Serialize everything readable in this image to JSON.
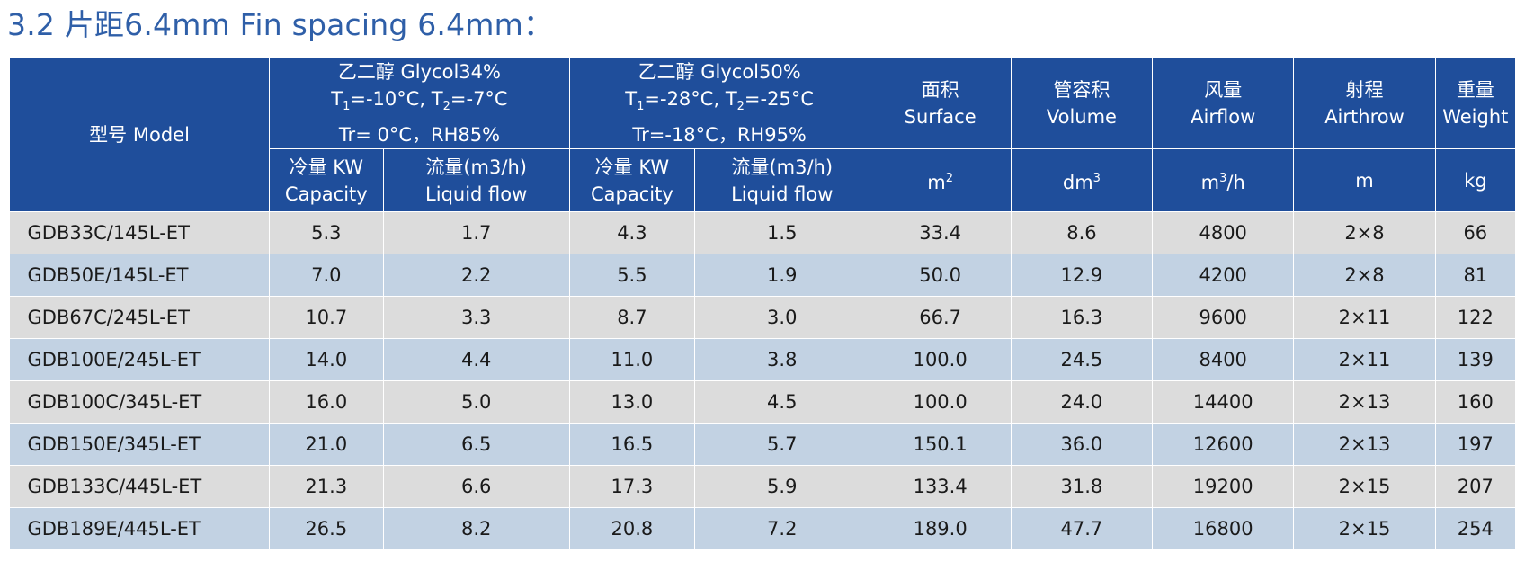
{
  "title": "3.2 片距6.4mm  Fin spacing 6.4mm：",
  "header": {
    "model": "型号 Model",
    "glycol34": {
      "line1": "乙二醇 Glycol34%",
      "t1_prefix": "T",
      "t1_sub": "1",
      "t1_val": "=-10°C, ",
      "t2_prefix": "T",
      "t2_sub": "2",
      "t2_val": "=-7°C",
      "line3": "Tr= 0°C，RH85%"
    },
    "glycol50": {
      "line1": "乙二醇 Glycol50%",
      "t1_prefix": "T",
      "t1_sub": "1",
      "t1_val": "=-28°C, ",
      "t2_prefix": "T",
      "t2_sub": "2",
      "t2_val": "=-25°C",
      "line3": "Tr=-18°C，RH95%"
    },
    "surface": {
      "cn": "面积",
      "en": "Surface"
    },
    "volume": {
      "cn": "管容积",
      "en": "Volume"
    },
    "airflow": {
      "cn": "风量",
      "en": "Airflow"
    },
    "airthrow": {
      "cn": "射程",
      "en": "Airthrow"
    },
    "weight": {
      "cn": "重量",
      "en": "Weight"
    },
    "capacity": {
      "cn": "冷量 KW",
      "en": "Capacity"
    },
    "liquid": {
      "cn": "流量(m3/h)",
      "en": "Liquid flow"
    },
    "units": {
      "surface_base": "m",
      "surface_sup": "2",
      "volume_base": "dm",
      "volume_sup": "3",
      "airflow_base": "m",
      "airflow_sup": "3",
      "airflow_rest": "/h",
      "airthrow": "m",
      "weight": "kg"
    }
  },
  "rows": [
    [
      "GDB33C/145L-ET",
      "5.3",
      "1.7",
      "4.3",
      "1.5",
      "33.4",
      "8.6",
      "4800",
      "2×8",
      "66"
    ],
    [
      "GDB50E/145L-ET",
      "7.0",
      "2.2",
      "5.5",
      "1.9",
      "50.0",
      "12.9",
      "4200",
      "2×8",
      "81"
    ],
    [
      "GDB67C/245L-ET",
      "10.7",
      "3.3",
      "8.7",
      "3.0",
      "66.7",
      "16.3",
      "9600",
      "2×11",
      "122"
    ],
    [
      "GDB100E/245L-ET",
      "14.0",
      "4.4",
      "11.0",
      "3.8",
      "100.0",
      "24.5",
      "8400",
      "2×11",
      "139"
    ],
    [
      "GDB100C/345L-ET",
      "16.0",
      "5.0",
      "13.0",
      "4.5",
      "100.0",
      "24.0",
      "14400",
      "2×13",
      "160"
    ],
    [
      "GDB150E/345L-ET",
      "21.0",
      "6.5",
      "16.5",
      "5.7",
      "150.1",
      "36.0",
      "12600",
      "2×13",
      "197"
    ],
    [
      "GDB133C/445L-ET",
      "21.3",
      "6.6",
      "17.3",
      "5.9",
      "133.4",
      "31.8",
      "19200",
      "2×15",
      "207"
    ],
    [
      "GDB189E/445L-ET",
      "26.5",
      "8.2",
      "20.8",
      "7.2",
      "189.0",
      "47.7",
      "16800",
      "2×15",
      "254"
    ]
  ],
  "colors": {
    "header_bg": "#1f4e9b",
    "title": "#2f5fa8",
    "row_gray": "#dcdcdc",
    "row_blue": "#c2d2e3"
  }
}
